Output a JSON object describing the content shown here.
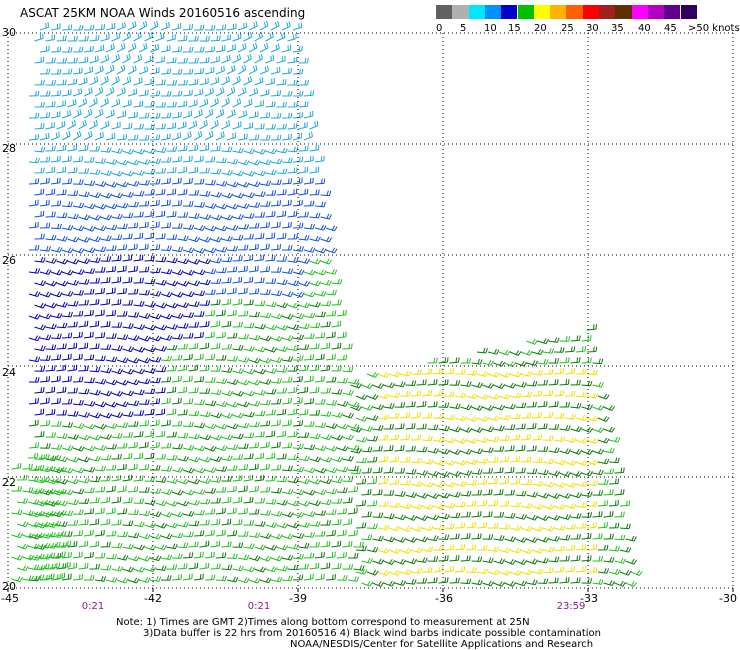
{
  "title": "ASCAT 25KM NOAA Winds 20160516 ascending",
  "legend": {
    "colors": [
      "#606060",
      "#b0b0b0",
      "#00e6ff",
      "#0090ff",
      "#0000c8",
      "#00c000",
      "#ffff00",
      "#ffb000",
      "#ff6000",
      "#ff0000",
      "#a02020",
      "#603000",
      "#ff00ff",
      "#b000c0",
      "#600090",
      "#300060"
    ],
    "labels": [
      "0",
      "5",
      "10",
      "15",
      "20",
      "25",
      "30",
      "35",
      "40",
      "45",
      ">50 knots"
    ]
  },
  "lat_labels": [
    "30",
    "28",
    "26",
    "24",
    "22",
    "20"
  ],
  "lon_labels": [
    "-45",
    "-42",
    "-39",
    "-36",
    "-33",
    "-30"
  ],
  "time_labels": [
    "0:21",
    "0:21",
    "23:59"
  ],
  "notes": [
    "Note: 1) Times are GMT 2)Times along bottom correspond to measurement at 25N",
    "3)Data buffer is 22 hrs from 20160516 4) Black wind barbs indicate possible contamination",
    "NOAA/NESDIS/Center for Satellite Applications and Research"
  ],
  "barb_colors": {
    "light_blue": "#1fa8d8",
    "blue": "#1050e0",
    "dark_blue": "#0000b0",
    "green": "#22c022",
    "dark_green": "#0a7a0a",
    "yellow": "#f0e000"
  }
}
